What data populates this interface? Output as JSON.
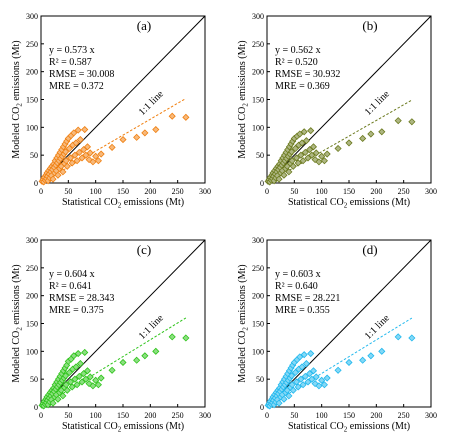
{
  "chart_data": [
    {
      "panel": "(a)",
      "type": "scatter",
      "xlabel": "Statistical CO₂ emissions (Mt)",
      "ylabel": "Modeled CO₂ emissions (Mt)",
      "xlim": [
        0,
        300
      ],
      "ylim": [
        0,
        300
      ],
      "xticks": [
        "0",
        "50",
        "100",
        "150",
        "200",
        "250",
        "300"
      ],
      "yticks": [
        "0",
        "50",
        "100",
        "150",
        "200",
        "250",
        "300"
      ],
      "color": "#f07f0f",
      "stats": [
        "y = 0.573 x",
        "R² = 0.587",
        "RMSE = 30.008",
        "MRE = 0.372"
      ],
      "fit_slope": 0.573,
      "one_to_one_label": "1:1 line",
      "points": [
        [
          2,
          3
        ],
        [
          4,
          6
        ],
        [
          5,
          2
        ],
        [
          6,
          10
        ],
        [
          8,
          5
        ],
        [
          9,
          14
        ],
        [
          10,
          8
        ],
        [
          11,
          18
        ],
        [
          12,
          12
        ],
        [
          13,
          4
        ],
        [
          14,
          22
        ],
        [
          15,
          16
        ],
        [
          16,
          9
        ],
        [
          17,
          26
        ],
        [
          18,
          20
        ],
        [
          19,
          13
        ],
        [
          20,
          30
        ],
        [
          21,
          24
        ],
        [
          22,
          7
        ],
        [
          23,
          34
        ],
        [
          24,
          28
        ],
        [
          25,
          18
        ],
        [
          26,
          40
        ],
        [
          27,
          32
        ],
        [
          28,
          22
        ],
        [
          29,
          45
        ],
        [
          30,
          36
        ],
        [
          31,
          14
        ],
        [
          32,
          50
        ],
        [
          33,
          40
        ],
        [
          34,
          26
        ],
        [
          35,
          55
        ],
        [
          36,
          44
        ],
        [
          37,
          30
        ],
        [
          38,
          60
        ],
        [
          39,
          48
        ],
        [
          40,
          20
        ],
        [
          41,
          65
        ],
        [
          42,
          52
        ],
        [
          43,
          35
        ],
        [
          44,
          70
        ],
        [
          45,
          56
        ],
        [
          46,
          40
        ],
        [
          47,
          75
        ],
        [
          48,
          30
        ],
        [
          50,
          80
        ],
        [
          52,
          62
        ],
        [
          54,
          45
        ],
        [
          55,
          85
        ],
        [
          57,
          36
        ],
        [
          58,
          68
        ],
        [
          60,
          90
        ],
        [
          62,
          50
        ],
        [
          64,
          72
        ],
        [
          66,
          40
        ],
        [
          68,
          95
        ],
        [
          70,
          55
        ],
        [
          72,
          78
        ],
        [
          75,
          45
        ],
        [
          78,
          60
        ],
        [
          80,
          96
        ],
        [
          82,
          50
        ],
        [
          85,
          65
        ],
        [
          88,
          42
        ],
        [
          90,
          54
        ],
        [
          95,
          38
        ],
        [
          100,
          48
        ],
        [
          105,
          40
        ],
        [
          110,
          52
        ],
        [
          130,
          64
        ],
        [
          150,
          78
        ],
        [
          175,
          82
        ],
        [
          190,
          90
        ],
        [
          210,
          96
        ],
        [
          240,
          120
        ],
        [
          265,
          118
        ]
      ]
    },
    {
      "panel": "(b)",
      "type": "scatter",
      "xlabel": "Statistical CO₂ emissions (Mt)",
      "ylabel": "Modeled CO₂ emissions (Mt)",
      "xlim": [
        0,
        300
      ],
      "ylim": [
        0,
        300
      ],
      "xticks": [
        "0",
        "50",
        "100",
        "150",
        "200",
        "250",
        "300"
      ],
      "yticks": [
        "0",
        "50",
        "100",
        "150",
        "200",
        "250",
        "300"
      ],
      "color": "#6b7a1e",
      "stats": [
        "y = 0.562 x",
        "R² = 0.520",
        "RMSE = 30.932",
        "MRE = 0.369"
      ],
      "fit_slope": 0.562,
      "one_to_one_label": "1:1 line",
      "points": [
        [
          2,
          3
        ],
        [
          4,
          6
        ],
        [
          5,
          2
        ],
        [
          6,
          10
        ],
        [
          8,
          5
        ],
        [
          9,
          14
        ],
        [
          10,
          8
        ],
        [
          11,
          18
        ],
        [
          12,
          12
        ],
        [
          13,
          4
        ],
        [
          14,
          22
        ],
        [
          15,
          16
        ],
        [
          16,
          9
        ],
        [
          17,
          26
        ],
        [
          18,
          20
        ],
        [
          19,
          13
        ],
        [
          20,
          30
        ],
        [
          21,
          24
        ],
        [
          22,
          7
        ],
        [
          23,
          34
        ],
        [
          24,
          28
        ],
        [
          25,
          18
        ],
        [
          26,
          40
        ],
        [
          27,
          32
        ],
        [
          28,
          22
        ],
        [
          29,
          45
        ],
        [
          30,
          36
        ],
        [
          31,
          14
        ],
        [
          32,
          50
        ],
        [
          33,
          40
        ],
        [
          34,
          26
        ],
        [
          35,
          55
        ],
        [
          36,
          44
        ],
        [
          37,
          30
        ],
        [
          38,
          60
        ],
        [
          39,
          48
        ],
        [
          40,
          20
        ],
        [
          41,
          65
        ],
        [
          42,
          52
        ],
        [
          43,
          35
        ],
        [
          44,
          70
        ],
        [
          45,
          56
        ],
        [
          46,
          40
        ],
        [
          47,
          75
        ],
        [
          48,
          30
        ],
        [
          50,
          80
        ],
        [
          52,
          62
        ],
        [
          54,
          45
        ],
        [
          55,
          84
        ],
        [
          57,
          36
        ],
        [
          58,
          68
        ],
        [
          60,
          88
        ],
        [
          62,
          50
        ],
        [
          64,
          72
        ],
        [
          66,
          40
        ],
        [
          68,
          92
        ],
        [
          70,
          55
        ],
        [
          72,
          76
        ],
        [
          75,
          45
        ],
        [
          78,
          60
        ],
        [
          80,
          94
        ],
        [
          82,
          50
        ],
        [
          85,
          65
        ],
        [
          88,
          42
        ],
        [
          90,
          54
        ],
        [
          95,
          38
        ],
        [
          100,
          48
        ],
        [
          105,
          40
        ],
        [
          110,
          52
        ],
        [
          130,
          62
        ],
        [
          150,
          72
        ],
        [
          175,
          80
        ],
        [
          190,
          88
        ],
        [
          210,
          92
        ],
        [
          240,
          112
        ],
        [
          265,
          110
        ]
      ]
    },
    {
      "panel": "(c)",
      "type": "scatter",
      "xlabel": "Statistical CO₂ emissions (Mt)",
      "ylabel": "Modeled CO₂ emissions (Mt)",
      "xlim": [
        0,
        300
      ],
      "ylim": [
        0,
        300
      ],
      "xticks": [
        "0",
        "50",
        "100",
        "150",
        "200",
        "250",
        "300"
      ],
      "yticks": [
        "0",
        "50",
        "100",
        "150",
        "200",
        "250",
        "300"
      ],
      "color": "#2ec41a",
      "stats": [
        "y = 0.604 x",
        "R² = 0.641",
        "RMSE = 28.343",
        "MRE = 0.375"
      ],
      "fit_slope": 0.604,
      "one_to_one_label": "1:1 line",
      "points": [
        [
          2,
          3
        ],
        [
          4,
          6
        ],
        [
          5,
          2
        ],
        [
          6,
          10
        ],
        [
          8,
          5
        ],
        [
          9,
          14
        ],
        [
          10,
          8
        ],
        [
          11,
          18
        ],
        [
          12,
          12
        ],
        [
          13,
          4
        ],
        [
          14,
          22
        ],
        [
          15,
          16
        ],
        [
          16,
          9
        ],
        [
          17,
          26
        ],
        [
          18,
          20
        ],
        [
          19,
          13
        ],
        [
          20,
          30
        ],
        [
          21,
          24
        ],
        [
          22,
          7
        ],
        [
          23,
          34
        ],
        [
          24,
          28
        ],
        [
          25,
          18
        ],
        [
          26,
          40
        ],
        [
          27,
          32
        ],
        [
          28,
          22
        ],
        [
          29,
          45
        ],
        [
          30,
          36
        ],
        [
          31,
          14
        ],
        [
          32,
          50
        ],
        [
          33,
          40
        ],
        [
          34,
          26
        ],
        [
          35,
          55
        ],
        [
          36,
          44
        ],
        [
          37,
          30
        ],
        [
          38,
          60
        ],
        [
          39,
          48
        ],
        [
          40,
          20
        ],
        [
          41,
          65
        ],
        [
          42,
          52
        ],
        [
          43,
          35
        ],
        [
          44,
          70
        ],
        [
          45,
          56
        ],
        [
          46,
          40
        ],
        [
          47,
          75
        ],
        [
          48,
          30
        ],
        [
          50,
          82
        ],
        [
          52,
          62
        ],
        [
          54,
          45
        ],
        [
          55,
          86
        ],
        [
          57,
          36
        ],
        [
          58,
          68
        ],
        [
          60,
          92
        ],
        [
          62,
          50
        ],
        [
          64,
          72
        ],
        [
          66,
          40
        ],
        [
          68,
          96
        ],
        [
          70,
          55
        ],
        [
          72,
          78
        ],
        [
          75,
          45
        ],
        [
          78,
          60
        ],
        [
          80,
          98
        ],
        [
          82,
          50
        ],
        [
          85,
          65
        ],
        [
          88,
          42
        ],
        [
          90,
          54
        ],
        [
          95,
          38
        ],
        [
          100,
          48
        ],
        [
          105,
          40
        ],
        [
          110,
          52
        ],
        [
          130,
          66
        ],
        [
          150,
          80
        ],
        [
          175,
          84
        ],
        [
          190,
          92
        ],
        [
          210,
          100
        ],
        [
          240,
          126
        ],
        [
          265,
          124
        ]
      ]
    },
    {
      "panel": "(d)",
      "type": "scatter",
      "xlabel": "Statistical CO₂ emissions (Mt)",
      "ylabel": "Modeled CO₂ emissions (Mt)",
      "xlim": [
        0,
        300
      ],
      "ylim": [
        0,
        300
      ],
      "xticks": [
        "0",
        "50",
        "100",
        "150",
        "200",
        "250",
        "300"
      ],
      "yticks": [
        "0",
        "50",
        "100",
        "150",
        "200",
        "250",
        "300"
      ],
      "color": "#20b8ee",
      "stats": [
        "y = 0.603 x",
        "R² = 0.640",
        "RMSE = 28.221",
        "MRE = 0.355"
      ],
      "fit_slope": 0.603,
      "one_to_one_label": "1:1 line",
      "points": [
        [
          2,
          3
        ],
        [
          4,
          6
        ],
        [
          5,
          2
        ],
        [
          6,
          10
        ],
        [
          8,
          5
        ],
        [
          9,
          14
        ],
        [
          10,
          8
        ],
        [
          11,
          18
        ],
        [
          12,
          12
        ],
        [
          13,
          4
        ],
        [
          14,
          22
        ],
        [
          15,
          16
        ],
        [
          16,
          9
        ],
        [
          17,
          26
        ],
        [
          18,
          20
        ],
        [
          19,
          13
        ],
        [
          20,
          30
        ],
        [
          21,
          24
        ],
        [
          22,
          7
        ],
        [
          23,
          34
        ],
        [
          24,
          28
        ],
        [
          25,
          18
        ],
        [
          26,
          40
        ],
        [
          27,
          32
        ],
        [
          28,
          22
        ],
        [
          29,
          45
        ],
        [
          30,
          36
        ],
        [
          31,
          14
        ],
        [
          32,
          50
        ],
        [
          33,
          40
        ],
        [
          34,
          26
        ],
        [
          35,
          55
        ],
        [
          36,
          44
        ],
        [
          37,
          30
        ],
        [
          38,
          60
        ],
        [
          39,
          48
        ],
        [
          40,
          20
        ],
        [
          41,
          65
        ],
        [
          42,
          52
        ],
        [
          43,
          35
        ],
        [
          44,
          70
        ],
        [
          45,
          56
        ],
        [
          46,
          40
        ],
        [
          47,
          75
        ],
        [
          48,
          30
        ],
        [
          50,
          80
        ],
        [
          52,
          62
        ],
        [
          54,
          45
        ],
        [
          55,
          85
        ],
        [
          57,
          36
        ],
        [
          58,
          68
        ],
        [
          60,
          90
        ],
        [
          62,
          50
        ],
        [
          64,
          72
        ],
        [
          66,
          40
        ],
        [
          68,
          94
        ],
        [
          70,
          55
        ],
        [
          72,
          78
        ],
        [
          75,
          45
        ],
        [
          78,
          60
        ],
        [
          80,
          96
        ],
        [
          82,
          50
        ],
        [
          85,
          65
        ],
        [
          88,
          42
        ],
        [
          90,
          54
        ],
        [
          95,
          38
        ],
        [
          100,
          48
        ],
        [
          105,
          40
        ],
        [
          110,
          52
        ],
        [
          130,
          66
        ],
        [
          150,
          80
        ],
        [
          175,
          84
        ],
        [
          190,
          92
        ],
        [
          210,
          100
        ],
        [
          240,
          126
        ],
        [
          265,
          124
        ]
      ]
    }
  ]
}
